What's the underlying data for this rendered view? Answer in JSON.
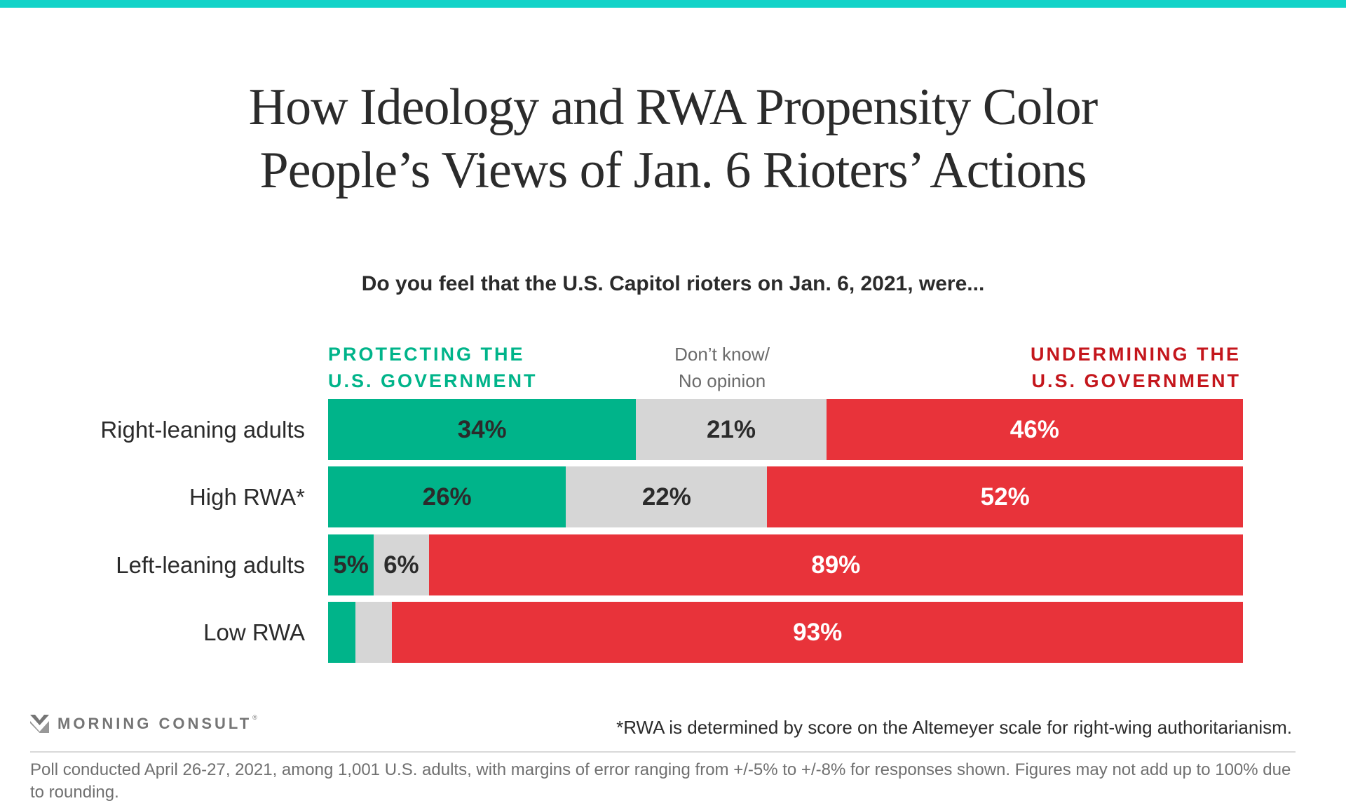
{
  "brand": {
    "name": "MORNING CONSULT",
    "registered": "®",
    "accent_color": "#12d3c8"
  },
  "header": {
    "title_lines": [
      "How Ideology and RWA Propensity Color",
      "People’s Views of Jan. 6 Rioters’ Actions"
    ]
  },
  "chart_data": {
    "type": "bar",
    "orientation": "horizontal",
    "stacked": true,
    "title": "How Ideology and RWA Propensity Color People’s Views of Jan. 6 Rioters’ Actions",
    "subtitle": "Do you feel that the U.S. Capitol rioters on Jan. 6, 2021, were...",
    "categories": [
      "Right-leaning adults",
      "High RWA*",
      "Left-leaning adults",
      "Low RWA"
    ],
    "series": [
      {
        "name": "Protecting the U.S. Government",
        "legend_lines": [
          "PROTECTING THE",
          "U.S. GOVERNMENT"
        ],
        "color": "#00b48a",
        "legend_color": "#00b48a",
        "label_color": "#2b2b2b",
        "values": [
          34,
          26,
          5,
          3
        ],
        "labels": [
          "34%",
          "26%",
          "5%",
          ""
        ]
      },
      {
        "name": "Don’t know/No opinion",
        "legend_lines": [
          "Don’t know/",
          "No opinion"
        ],
        "color": "#d6d6d6",
        "legend_color": "#6b6b6b",
        "label_color": "#2b2b2b",
        "values": [
          21,
          22,
          6,
          4
        ],
        "labels": [
          "21%",
          "22%",
          "6%",
          ""
        ]
      },
      {
        "name": "Undermining the U.S. Government",
        "legend_lines": [
          "UNDERMINING THE",
          "U.S. GOVERNMENT"
        ],
        "color": "#e8333a",
        "legend_color": "#c4161c",
        "label_color": "#ffffff",
        "values": [
          46,
          52,
          89,
          93
        ],
        "labels": [
          "46%",
          "52%",
          "89%",
          "93%"
        ]
      }
    ],
    "xlim": [
      0,
      100
    ],
    "grid": false,
    "legend_position": "top"
  },
  "footer": {
    "footnote": "*RWA is determined by score on the Altemeyer scale for right-wing authoritarianism.",
    "source": "Poll conducted April 26-27, 2021, among 1,001 U.S. adults, with margins of error ranging from +/-5% to +/-8% for responses shown. Figures may not add up to 100% due to rounding."
  }
}
